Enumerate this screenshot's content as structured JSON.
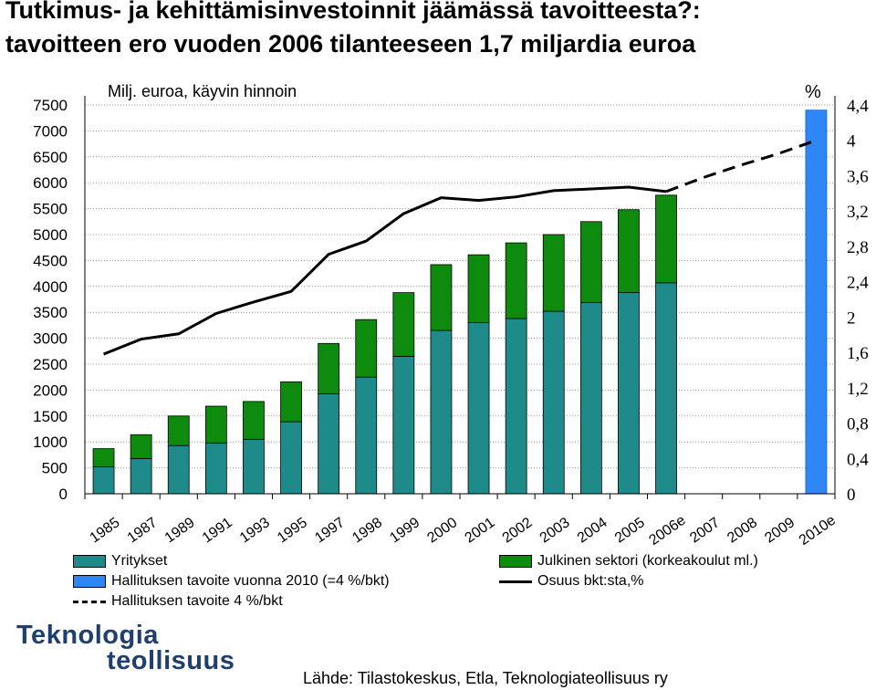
{
  "title_line1": "Tutkimus- ja kehittämisinvestoinnit jäämässä tavoitteesta?:",
  "title_line2": "tavoitteen ero vuoden 2006 tilanteeseen 1,7 miljardia euroa",
  "chart_data": {
    "type": "bar",
    "left_axis_label": "Milj. euroa, käyvin hinnoin",
    "right_axis_label": "%",
    "left_ticks": [
      "7500",
      "7000",
      "6500",
      "6000",
      "5500",
      "5000",
      "4500",
      "4000",
      "3500",
      "3000",
      "2500",
      "2000",
      "1500",
      "1000",
      "500",
      "0"
    ],
    "right_ticks": [
      "4,4",
      "4",
      "3,6",
      "3,2",
      "2,8",
      "2,4",
      "2",
      "1,6",
      "1,2",
      "0,8",
      "0,4",
      "0"
    ],
    "ylim_left": [
      0,
      7500
    ],
    "ylim_right": [
      0,
      4.4
    ],
    "categories": [
      "1985",
      "1987",
      "1989",
      "1991",
      "1993",
      "1995",
      "1997",
      "1998",
      "1999",
      "2000",
      "2001",
      "2002",
      "2003",
      "2004",
      "2005",
      "2006e",
      "2007",
      "2008",
      "2009",
      "2010e"
    ],
    "series": [
      {
        "name": "Yritykset",
        "color": "#1f8a8a",
        "values": [
          520,
          680,
          930,
          980,
          1050,
          1390,
          1930,
          2250,
          2650,
          3150,
          3300,
          3380,
          3520,
          3690,
          3880,
          4070,
          null,
          null,
          null,
          null
        ]
      },
      {
        "name": "Julkinen sektori (korkeakoulut ml.)",
        "color": "#0e8a0e",
        "values": [
          350,
          460,
          570,
          710,
          730,
          770,
          970,
          1110,
          1230,
          1270,
          1310,
          1460,
          1480,
          1560,
          1600,
          1690,
          null,
          null,
          null,
          null
        ]
      },
      {
        "name": "Hallituksen tavoite vuonna 2010 (=4 %/bkt)",
        "color": "#2f86f5",
        "values": [
          null,
          null,
          null,
          null,
          null,
          null,
          null,
          null,
          null,
          null,
          null,
          null,
          null,
          null,
          null,
          null,
          null,
          null,
          null,
          7400
        ]
      },
      {
        "name": "Osuus bkt:sta,%",
        "color": "#000000",
        "axis": "right",
        "values": [
          1.58,
          1.75,
          1.81,
          2.04,
          2.17,
          2.29,
          2.71,
          2.86,
          3.17,
          3.35,
          3.32,
          3.36,
          3.43,
          3.45,
          3.47,
          3.42,
          null,
          null,
          null,
          null
        ]
      },
      {
        "name": "Hallituksen tavoite 4 %/bkt",
        "color": "#000000",
        "axis": "right",
        "dash": true,
        "values": [
          null,
          null,
          null,
          null,
          null,
          null,
          null,
          null,
          null,
          null,
          null,
          null,
          null,
          null,
          null,
          3.42,
          3.58,
          3.72,
          3.85,
          4.0
        ]
      }
    ]
  },
  "legend": {
    "yritykset": "Yritykset",
    "julkinen": "Julkinen sektori (korkeakoulut ml.)",
    "tavoite2010": "Hallituksen tavoite vuonna 2010 (=4 %/bkt)",
    "osuus": "Osuus bkt:sta,%",
    "tavoite4": "Hallituksen tavoite 4 %/bkt"
  },
  "source": "Lähde: Tilastokeskus, Etla, Teknologiateollisuus ry",
  "logo": {
    "line1": "Teknologia",
    "line2": "teollisuus"
  }
}
